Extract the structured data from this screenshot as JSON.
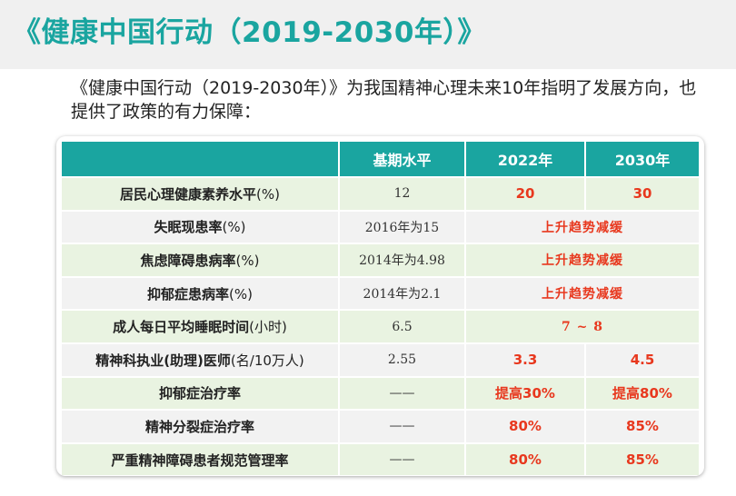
{
  "slide": {
    "title": "《健康中国行动（2019-2030年）》",
    "intro": "《健康中国行动（2019-2030年）》为我国精神心理未来10年指明了发展方向，也提供了政策的有力保障："
  },
  "table": {
    "headers": [
      "",
      "基期水平",
      "2022年",
      "2030年"
    ],
    "rows": [
      {
        "label": "居民心理健康素养水平",
        "unit": "(%)",
        "base": "12",
        "y2022": "20",
        "y2030": "30"
      },
      {
        "label": "失眠现患率",
        "unit": "(%)",
        "base": "2016年为15",
        "trend": "上升趋势减缓"
      },
      {
        "label": "焦虑障碍患病率",
        "unit": "(%)",
        "base": "2014年为4.98",
        "trend": "上升趋势减缓"
      },
      {
        "label": "抑郁症患病率",
        "unit": "(%)",
        "base": "2014年为2.1",
        "trend": "上升趋势减缓"
      },
      {
        "label": "成人每日平均睡眠时间",
        "unit": "(小时)",
        "base": "6.5",
        "trend": "7 ~ 8"
      },
      {
        "label": "精神科执业(助理)医师",
        "unit": "(名/10万人)",
        "base": "2.55",
        "y2022": "3.3",
        "y2030": "4.5"
      },
      {
        "label": "抑郁症治疗率",
        "unit": "",
        "base": "——",
        "y2022": "提高30%",
        "y2030": "提高80%"
      },
      {
        "label": "精神分裂症治疗率",
        "unit": "",
        "base": "——",
        "y2022": "80%",
        "y2030": "85%"
      },
      {
        "label": "严重精神障碍患者规范管理率",
        "unit": "",
        "base": "——",
        "y2022": "80%",
        "y2030": "85%"
      }
    ]
  },
  "colors": {
    "accent": "#1aa5a0",
    "highlight_red": "#e8381e",
    "row_green": "#e9f3e1",
    "row_gray": "#f2f2f2"
  }
}
